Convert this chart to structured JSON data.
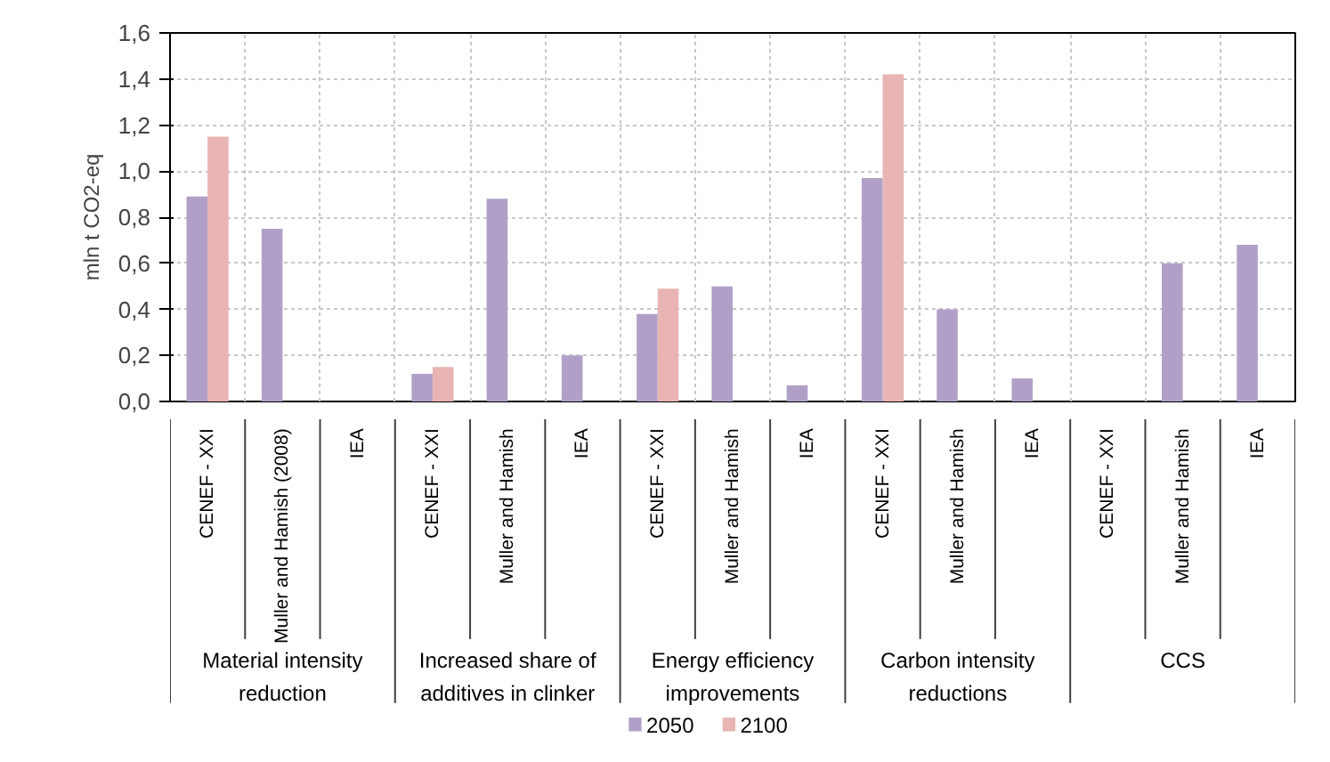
{
  "chart_data": {
    "type": "bar",
    "ylabel": "mln t CO2-eq",
    "categories": [
      "CENEF - XXI",
      "Muller and Hamish (2008)",
      "IEA",
      "CENEF - XXI",
      "Muller and Hamish",
      "IEA",
      "CENEF - XXI",
      "Muller and Hamish",
      "IEA",
      "CENEF - XXI",
      "Muller and Hamish",
      "IEA",
      "CENEF - XXI",
      "Muller and Hamish",
      "IEA"
    ],
    "annotations": [
      "Material intensity reduction",
      "Increased share of additives in clinker",
      "Energy efficiency improvements",
      "Carbon intensity reductions",
      "CCS"
    ],
    "series": [
      {
        "name": "2050",
        "color": "#b0a0c8",
        "values": [
          0.89,
          0.75,
          null,
          0.12,
          0.88,
          0.2,
          0.38,
          0.5,
          0.07,
          0.97,
          0.4,
          0.1,
          null,
          0.6,
          0.68
        ]
      },
      {
        "name": "2100",
        "color": "#e8b4b4",
        "values": [
          1.15,
          null,
          null,
          0.15,
          null,
          null,
          0.49,
          null,
          null,
          1.42,
          null,
          null,
          null,
          null,
          null
        ]
      }
    ],
    "ylim": [
      0,
      1.6
    ],
    "yticks": [
      {
        "value": 0,
        "label": "0,0"
      },
      {
        "value": 0.2,
        "label": "0,2"
      },
      {
        "value": 0.4,
        "label": "0,4"
      },
      {
        "value": 0.6,
        "label": "0,6"
      },
      {
        "value": 0.8,
        "label": "0,8"
      },
      {
        "value": 1.0,
        "label": "1,0"
      },
      {
        "value": 1.2,
        "label": "1,2"
      },
      {
        "value": 1.4,
        "label": "1,4"
      },
      {
        "value": 1.6,
        "label": "1,6"
      }
    ],
    "grid": true,
    "legend": "bottom"
  }
}
